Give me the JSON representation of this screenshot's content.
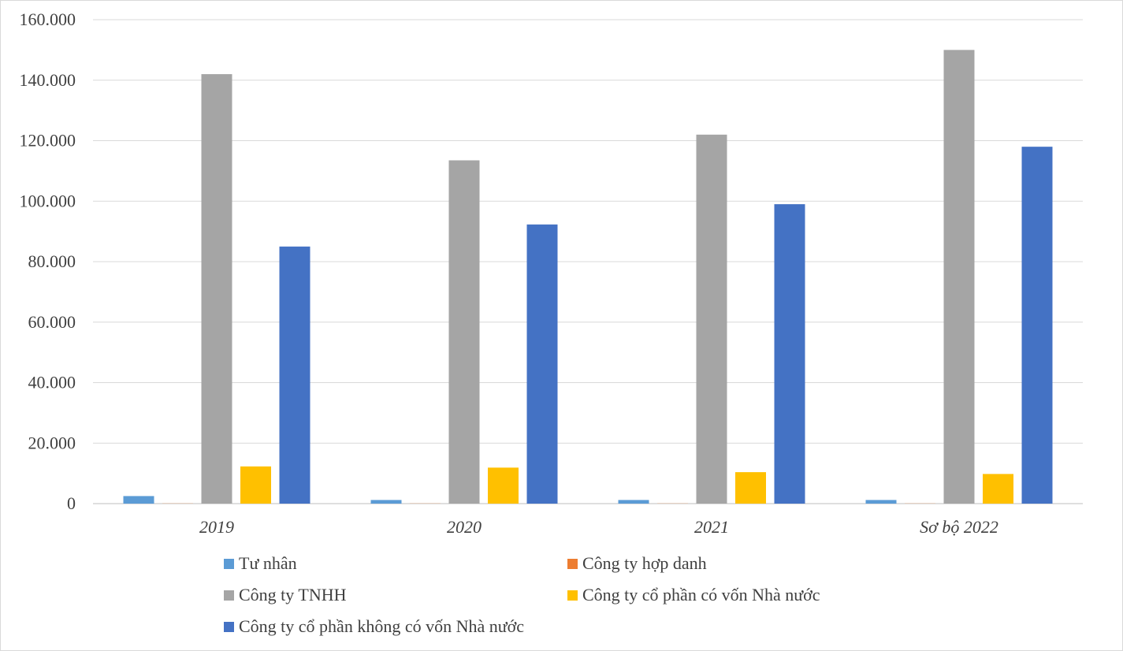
{
  "chart_data": {
    "type": "bar",
    "title": "",
    "xlabel": "",
    "ylabel": "",
    "ylim": [
      0,
      160000
    ],
    "yticks": [
      0,
      20000,
      40000,
      60000,
      80000,
      100000,
      120000,
      140000,
      160000
    ],
    "ytick_labels": [
      "0",
      "20.000",
      "40.000",
      "60.000",
      "80.000",
      "100.000",
      "120.000",
      "140.000",
      "160.000"
    ],
    "categories": [
      "2019",
      "2020",
      "2021",
      "Sơ bộ 2022"
    ],
    "grid": true,
    "legend_position": "bottom",
    "series": [
      {
        "name": "Tư nhân",
        "color": "#5b9bd5",
        "values": [
          2500,
          1200,
          1200,
          1200
        ]
      },
      {
        "name": "Công ty hợp danh",
        "color": "#ed7d31",
        "values": [
          50,
          50,
          50,
          50
        ]
      },
      {
        "name": "Công ty TNHH",
        "color": "#a5a5a5",
        "values": [
          142000,
          113500,
          122000,
          150000
        ]
      },
      {
        "name": "Công ty cổ phần có vốn Nhà nước",
        "color": "#ffc000",
        "values": [
          12300,
          11900,
          10400,
          9800
        ]
      },
      {
        "name": "Công ty cổ phần không có vốn Nhà nước",
        "color": "#4472c4",
        "values": [
          85000,
          92300,
          99000,
          118000
        ]
      }
    ]
  }
}
